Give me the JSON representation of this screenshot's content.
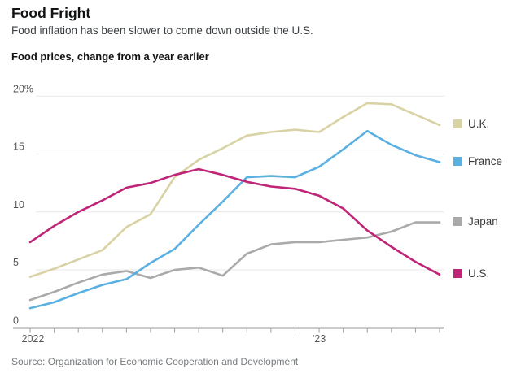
{
  "header": {
    "title": "Food Fright",
    "subtitle": "Food inflation has been slower to come down outside the U.S."
  },
  "chart": {
    "kicker": "Food prices, change from a year earlier"
  },
  "chart_data": {
    "type": "line",
    "title": "Food prices, change from a year earlier",
    "x": [
      "Jan 2022",
      "Feb 2022",
      "Mar 2022",
      "Apr 2022",
      "May 2022",
      "Jun 2022",
      "Jul 2022",
      "Aug 2022",
      "Sep 2022",
      "Oct 2022",
      "Nov 2022",
      "Dec 2022",
      "Jan 2023",
      "Feb 2023",
      "Mar 2023",
      "Apr 2023",
      "May 2023",
      "Jun 2023"
    ],
    "x_tick_labels": [
      {
        "index": 0,
        "text": "2022",
        "anchor": "start"
      },
      {
        "index": 12,
        "text": "'23",
        "anchor": "middle"
      }
    ],
    "ylim": [
      0,
      20
    ],
    "yticks": [
      {
        "value": 0,
        "label": "0"
      },
      {
        "value": 5,
        "label": "5"
      },
      {
        "value": 10,
        "label": "10"
      },
      {
        "value": 15,
        "label": "15"
      },
      {
        "value": 20,
        "label": "20%"
      }
    ],
    "grid": "horizontal",
    "legend_position": "right",
    "unit": "percent",
    "series": [
      {
        "name": "U.K.",
        "color": "#d9d2a4",
        "values": [
          4.4,
          5.1,
          5.9,
          6.7,
          8.7,
          9.8,
          13.0,
          14.5,
          15.5,
          16.6,
          16.9,
          17.1,
          16.9,
          18.2,
          19.4,
          19.3,
          18.4,
          17.5
        ]
      },
      {
        "name": "France",
        "color": "#5bb0e2",
        "values": [
          1.7,
          2.2,
          3.0,
          3.7,
          4.2,
          5.6,
          6.8,
          8.9,
          10.9,
          13.0,
          13.1,
          13.0,
          13.9,
          15.4,
          17.0,
          15.8,
          14.9,
          14.3
        ]
      },
      {
        "name": "Japan",
        "color": "#aaaaaa",
        "values": [
          2.4,
          3.1,
          3.9,
          4.6,
          4.9,
          4.3,
          5.0,
          5.2,
          4.5,
          6.4,
          7.2,
          7.4,
          7.4,
          7.6,
          7.8,
          8.3,
          9.1,
          9.1
        ]
      },
      {
        "name": "U.S.",
        "color": "#bf2476",
        "values": [
          7.4,
          8.8,
          10.0,
          11.0,
          12.1,
          12.5,
          13.2,
          13.7,
          13.2,
          12.6,
          12.2,
          12.0,
          11.4,
          10.3,
          8.4,
          7.0,
          5.7,
          4.6
        ]
      }
    ]
  },
  "source": "Source: Organization for Economic Cooperation and Development",
  "colors": {
    "grid": "#e8e8e8",
    "axis": "#9b9b9b",
    "axis_label": "#555555",
    "background": "#ffffff"
  }
}
